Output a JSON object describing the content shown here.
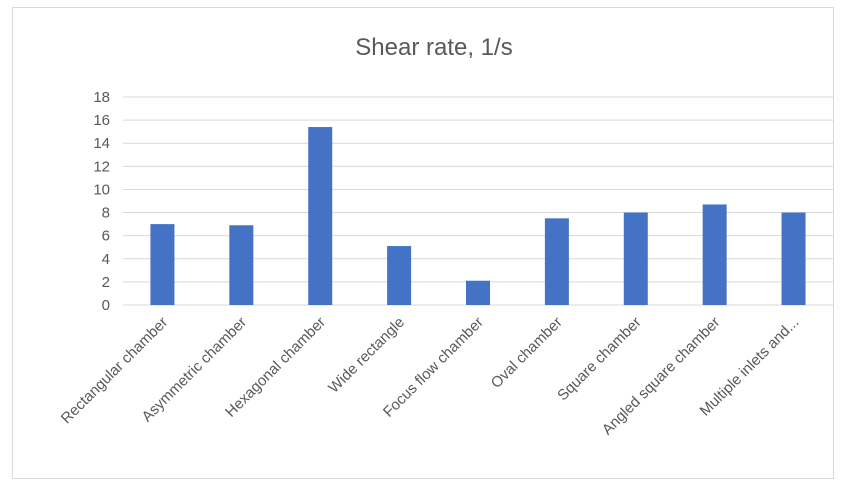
{
  "chart_data": {
    "type": "bar",
    "title": "Shear rate, 1/s",
    "xlabel": "",
    "ylabel": "",
    "categories": [
      "Rectangular chamber",
      "Asymmetric chamber",
      "Hexagonal chamber",
      "Wide rectangle",
      "Focus flow chamber",
      "Oval chamber",
      "Square chamber",
      "Angled square chamber",
      "Multiple inlets and..."
    ],
    "values": [
      7.0,
      6.9,
      15.4,
      5.1,
      2.1,
      7.5,
      8.0,
      8.7,
      8.0
    ],
    "ylim": [
      0,
      18
    ],
    "yticks": [
      0,
      2,
      4,
      6,
      8,
      10,
      12,
      14,
      16,
      18
    ],
    "grid": true,
    "bar_color": "#4472c4",
    "legend": "none"
  }
}
